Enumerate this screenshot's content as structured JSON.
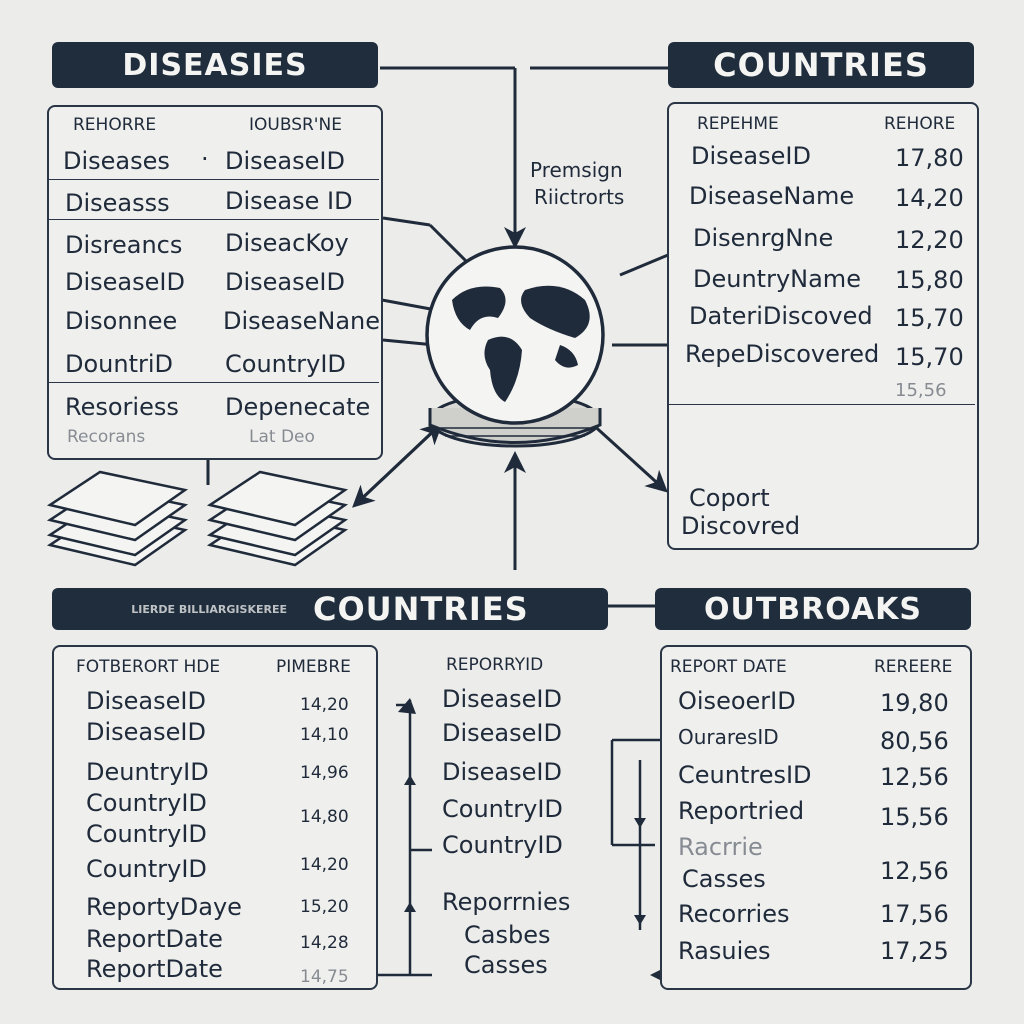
{
  "banners": {
    "top_left": "DISEASIES",
    "top_right": "COUNTRIES",
    "bottom_left_garbled": "LIERDE BILLIARGISKEREE",
    "bottom_center": "COUNTRIES",
    "bottom_right": "OUTBROAKS"
  },
  "center_label": [
    "Premsign",
    "Riictrorts"
  ],
  "top_left_table": {
    "headers": [
      "REHORRE",
      "IOUBSR'NE"
    ],
    "rows": [
      [
        "Diseases",
        "DiseaseID"
      ],
      [
        "Diseasss",
        "Disease ID"
      ],
      [
        "Disreancs",
        "DiseacKoy"
      ],
      [
        "DiseaseID",
        "DiseaseID"
      ],
      [
        "Disonnee",
        "DiseaseNane"
      ],
      [
        "DountriD",
        "CountryID"
      ],
      [
        "Resoriess",
        "Depenecate"
      ],
      [
        "Recorans",
        "Lat Deo"
      ]
    ]
  },
  "top_right_table": {
    "headers": [
      "REPEHME",
      "REHORE"
    ],
    "rows": [
      [
        "DiseaseID",
        "17,80"
      ],
      [
        "DiseaseName",
        "14,20"
      ],
      [
        "DisenrgNne",
        "12,20"
      ],
      [
        "DeuntryName",
        "15,80"
      ],
      [
        "DateriDiscoved",
        "15,70"
      ],
      [
        "RepeDiscovered",
        "15,70"
      ],
      [
        "",
        "15,56"
      ]
    ],
    "footer": [
      "Coport",
      "Discovred"
    ]
  },
  "bottom_left_table": {
    "headers": [
      "FOTBERORT HDE",
      "PIMEBRE"
    ],
    "rows": [
      [
        "DiseaseID",
        "14,20"
      ],
      [
        "DiseaseID",
        "14,10"
      ],
      [
        "DeuntryID",
        "14,96"
      ],
      [
        "CountryID",
        ""
      ],
      [
        "CountryID",
        "14,80"
      ],
      [
        "CountryID",
        "14,20"
      ],
      [
        "ReportyDaye",
        "15,20"
      ],
      [
        "ReportDate",
        "14,28"
      ],
      [
        "ReportDate",
        "14,75"
      ]
    ]
  },
  "bottom_center_table": {
    "header": "REPORRYID",
    "rows": [
      "DiseaseID",
      "DiseaseID",
      "DiseaseID",
      "CountryID",
      "CountryID",
      "Reporrnies",
      "Casbes",
      "Casses"
    ]
  },
  "bottom_right_table": {
    "headers": [
      "REPORT DATE",
      "REREERE"
    ],
    "rows": [
      [
        "OiseoerID",
        "19,80"
      ],
      [
        "OuraresID",
        "80,56"
      ],
      [
        "CeuntresID",
        "12,56"
      ],
      [
        "Reportried",
        "15,56"
      ],
      [
        "Racrrie",
        ""
      ],
      [
        "Casses",
        "12,56"
      ],
      [
        "Recorries",
        "17,56"
      ],
      [
        "Rasuies",
        "17,25"
      ]
    ]
  }
}
